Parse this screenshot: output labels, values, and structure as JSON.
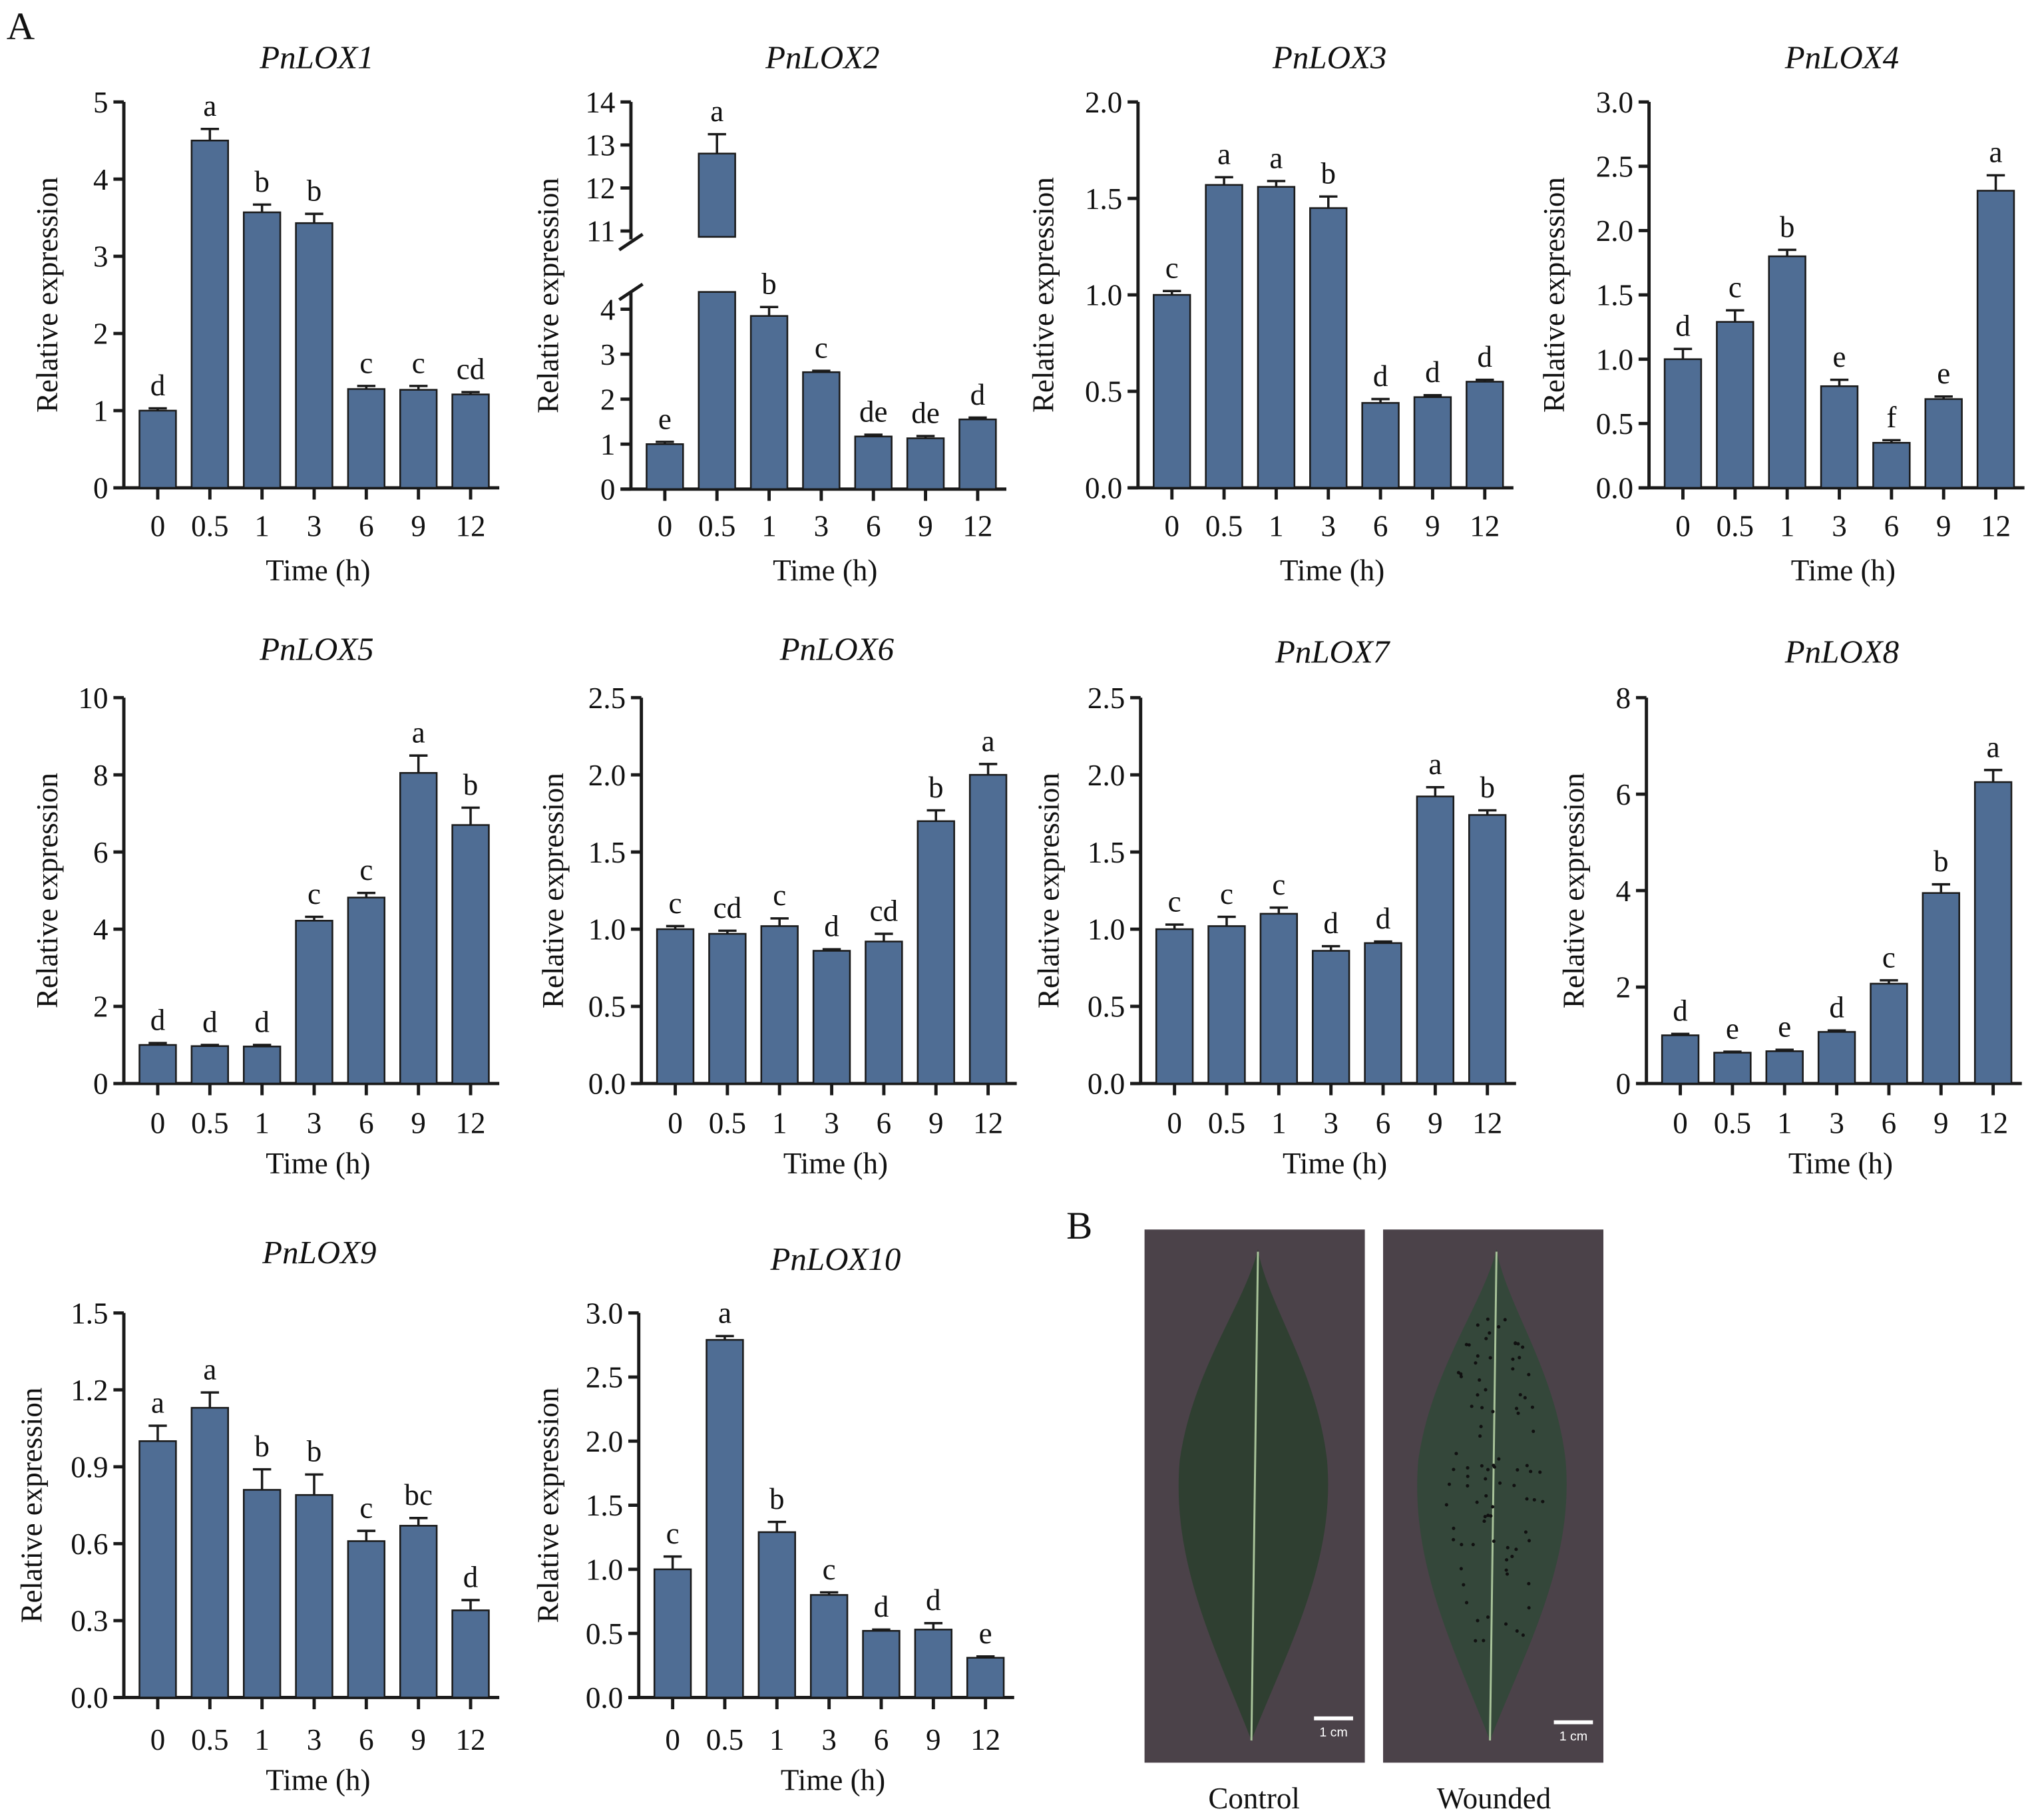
{
  "panel_labels": {
    "a": "A",
    "b": "B"
  },
  "photos": {
    "control_label": "Control",
    "wounded_label": "Wounded",
    "scale_bar": "1 cm",
    "background_color": "#4b4249",
    "leaf_color": "#2f3f31"
  },
  "colors": {
    "bar": "#4f6d94",
    "edge": "#1a1a1a"
  },
  "chart_data": [
    {
      "type": "bar",
      "title": "PnLOX1",
      "xlabel": "Time (h)",
      "ylabel": "Relative expression",
      "categories": [
        "0",
        "0.5",
        "1",
        "3",
        "6",
        "9",
        "12"
      ],
      "values": [
        1.0,
        4.5,
        3.57,
        3.43,
        1.28,
        1.27,
        1.21
      ],
      "errors": [
        0.03,
        0.15,
        0.1,
        0.12,
        0.04,
        0.05,
        0.03
      ],
      "letters": [
        "d",
        "a",
        "b",
        "b",
        "c",
        "c",
        "cd"
      ],
      "ylim": [
        0,
        5
      ],
      "yticks": [
        "0",
        "1",
        "2",
        "3",
        "4",
        "5"
      ]
    },
    {
      "type": "bar",
      "title": "PnLOX2",
      "xlabel": "Time (h)",
      "ylabel": "Relative expression",
      "categories": [
        "0",
        "0.5",
        "1",
        "3",
        "6",
        "9",
        "12"
      ],
      "values": [
        1.0,
        12.8,
        3.85,
        2.6,
        1.17,
        1.13,
        1.55
      ],
      "errors": [
        0.05,
        0.45,
        0.2,
        0.03,
        0.04,
        0.05,
        0.04
      ],
      "letters": [
        "e",
        "a",
        "b",
        "c",
        "de",
        "de",
        "d"
      ],
      "ylim": [
        0,
        14
      ],
      "axis_break": [
        4.5,
        10.5
      ],
      "yticks": [
        "0",
        "1",
        "2",
        "3",
        "4",
        "11",
        "12",
        "13",
        "14"
      ]
    },
    {
      "type": "bar",
      "title": "PnLOX3",
      "xlabel": "Time (h)",
      "ylabel": "Relative expression",
      "categories": [
        "0",
        "0.5",
        "1",
        "3",
        "6",
        "9",
        "12"
      ],
      "values": [
        1.0,
        1.57,
        1.56,
        1.45,
        0.44,
        0.47,
        0.55
      ],
      "errors": [
        0.02,
        0.04,
        0.03,
        0.06,
        0.02,
        0.01,
        0.01
      ],
      "letters": [
        "c",
        "a",
        "a",
        "b",
        "d",
        "d",
        "d"
      ],
      "ylim": [
        0,
        2
      ],
      "yticks": [
        "0.0",
        "0.5",
        "1.0",
        "1.5",
        "2.0"
      ]
    },
    {
      "type": "bar",
      "title": "PnLOX4",
      "xlabel": "Time (h)",
      "ylabel": "Relative expression",
      "categories": [
        "0",
        "0.5",
        "1",
        "3",
        "6",
        "9",
        "12"
      ],
      "values": [
        1.0,
        1.29,
        1.8,
        0.79,
        0.35,
        0.69,
        2.31
      ],
      "errors": [
        0.08,
        0.09,
        0.05,
        0.05,
        0.02,
        0.02,
        0.12
      ],
      "letters": [
        "d",
        "c",
        "b",
        "e",
        "f",
        "e",
        "a"
      ],
      "ylim": [
        0,
        3
      ],
      "yticks": [
        "0.0",
        "0.5",
        "1.0",
        "1.5",
        "2.0",
        "2.5",
        "3.0"
      ]
    },
    {
      "type": "bar",
      "title": "PnLOX5",
      "xlabel": "Time (h)",
      "ylabel": "Relative expression",
      "categories": [
        "0",
        "0.5",
        "1",
        "3",
        "6",
        "9",
        "12"
      ],
      "values": [
        1.0,
        0.97,
        0.96,
        4.22,
        4.82,
        8.05,
        6.7
      ],
      "errors": [
        0.05,
        0.03,
        0.04,
        0.1,
        0.12,
        0.45,
        0.45
      ],
      "letters": [
        "d",
        "d",
        "d",
        "c",
        "c",
        "a",
        "b"
      ],
      "ylim": [
        0,
        10
      ],
      "yticks": [
        "0",
        "2",
        "4",
        "6",
        "8",
        "10"
      ]
    },
    {
      "type": "bar",
      "title": "PnLOX6",
      "xlabel": "Time (h)",
      "ylabel": "Relative expression",
      "categories": [
        "0",
        "0.5",
        "1",
        "3",
        "6",
        "9",
        "12"
      ],
      "values": [
        1.0,
        0.97,
        1.02,
        0.86,
        0.92,
        1.7,
        2.0
      ],
      "errors": [
        0.02,
        0.02,
        0.05,
        0.01,
        0.05,
        0.07,
        0.07
      ],
      "letters": [
        "c",
        "cd",
        "c",
        "d",
        "cd",
        "b",
        "a"
      ],
      "ylim": [
        0,
        2.5
      ],
      "yticks": [
        "0.0",
        "0.5",
        "1.0",
        "1.5",
        "2.0",
        "2.5"
      ]
    },
    {
      "type": "bar",
      "title": "PnLOX7",
      "xlabel": "Time (h)",
      "ylabel": "Relative expression",
      "categories": [
        "0",
        "0.5",
        "1",
        "3",
        "6",
        "9",
        "12"
      ],
      "values": [
        1.0,
        1.02,
        1.1,
        0.86,
        0.91,
        1.86,
        1.74
      ],
      "errors": [
        0.03,
        0.06,
        0.04,
        0.03,
        0.01,
        0.06,
        0.03
      ],
      "letters": [
        "c",
        "c",
        "c",
        "d",
        "d",
        "a",
        "b"
      ],
      "ylim": [
        0,
        2.5
      ],
      "yticks": [
        "0.0",
        "0.5",
        "1.0",
        "1.5",
        "2.0",
        "2.5"
      ]
    },
    {
      "type": "bar",
      "title": "PnLOX8",
      "xlabel": "Time (h)",
      "ylabel": "Relative expression",
      "categories": [
        "0",
        "0.5",
        "1",
        "3",
        "6",
        "9",
        "12"
      ],
      "values": [
        1.0,
        0.64,
        0.67,
        1.07,
        2.07,
        3.95,
        6.25
      ],
      "errors": [
        0.03,
        0.02,
        0.03,
        0.03,
        0.07,
        0.18,
        0.25
      ],
      "letters": [
        "d",
        "e",
        "e",
        "d",
        "c",
        "b",
        "a"
      ],
      "ylim": [
        0,
        8
      ],
      "yticks": [
        "0",
        "2",
        "4",
        "6",
        "8"
      ]
    },
    {
      "type": "bar",
      "title": "PnLOX9",
      "xlabel": "Time (h)",
      "ylabel": "Relative expression",
      "categories": [
        "0",
        "0.5",
        "1",
        "3",
        "6",
        "9",
        "12"
      ],
      "values": [
        1.0,
        1.13,
        0.81,
        0.79,
        0.61,
        0.67,
        0.34
      ],
      "errors": [
        0.06,
        0.06,
        0.08,
        0.08,
        0.04,
        0.03,
        0.04
      ],
      "letters": [
        "a",
        "a",
        "b",
        "b",
        "c",
        "bc",
        "d"
      ],
      "ylim": [
        0,
        1.5
      ],
      "yticks": [
        "0.0",
        "0.3",
        "0.6",
        "0.9",
        "1.2",
        "1.5"
      ]
    },
    {
      "type": "bar",
      "title": "PnLOX10",
      "xlabel": "Time (h)",
      "ylabel": "Relative expression",
      "categories": [
        "0",
        "0.5",
        "1",
        "3",
        "6",
        "9",
        "12"
      ],
      "values": [
        1.0,
        2.79,
        1.29,
        0.8,
        0.52,
        0.53,
        0.31
      ],
      "errors": [
        0.1,
        0.03,
        0.08,
        0.02,
        0.01,
        0.05,
        0.01
      ],
      "letters": [
        "c",
        "a",
        "b",
        "c",
        "d",
        "d",
        "e"
      ],
      "ylim": [
        0,
        3
      ],
      "yticks": [
        "0.0",
        "0.5",
        "1.0",
        "1.5",
        "2.0",
        "2.5",
        "3.0"
      ]
    }
  ]
}
